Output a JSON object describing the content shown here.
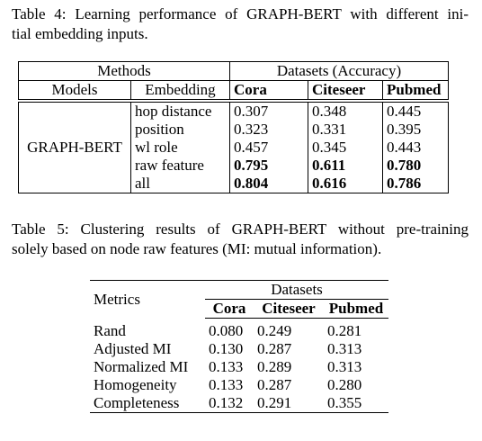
{
  "table4": {
    "caption": [
      "Table 4: Learning performance of GRAPH-BERT with different ini-",
      "tial embedding inputs."
    ],
    "header": [
      "Methods",
      "Datasets (Accuracy)"
    ],
    "columns": [
      "Models",
      "Embedding",
      "Cora",
      "Citeseer",
      "Pubmed"
    ],
    "model": "GRAPH-BERT",
    "rows": [
      [
        "hop distance",
        "0.307",
        "0.348",
        "0.445"
      ],
      [
        "position",
        "0.323",
        "0.331",
        "0.395"
      ],
      [
        "wl role",
        "0.457",
        "0.345",
        "0.443"
      ],
      [
        "raw feature",
        "0.795",
        "0.611",
        "0.780"
      ],
      [
        "all",
        "0.804",
        "0.616",
        "0.786"
      ]
    ]
  },
  "table5": {
    "caption": [
      "Table 5: Clustering results of GRAPH-BERT without pre-training",
      "solely based on node raw features (MI: mutual information)."
    ],
    "header": [
      "Metrics",
      "Datasets"
    ],
    "columns": [
      "Cora",
      "Citeseer",
      "Pubmed"
    ],
    "rows": [
      [
        "Rand",
        "0.080",
        "0.249",
        "0.281"
      ],
      [
        "Adjusted MI",
        "0.130",
        "0.287",
        "0.313"
      ],
      [
        "Normalized MI",
        "0.133",
        "0.289",
        "0.313"
      ],
      [
        "Homogeneity",
        "0.133",
        "0.287",
        "0.280"
      ],
      [
        "Completeness",
        "0.132",
        "0.291",
        "0.355"
      ]
    ]
  }
}
